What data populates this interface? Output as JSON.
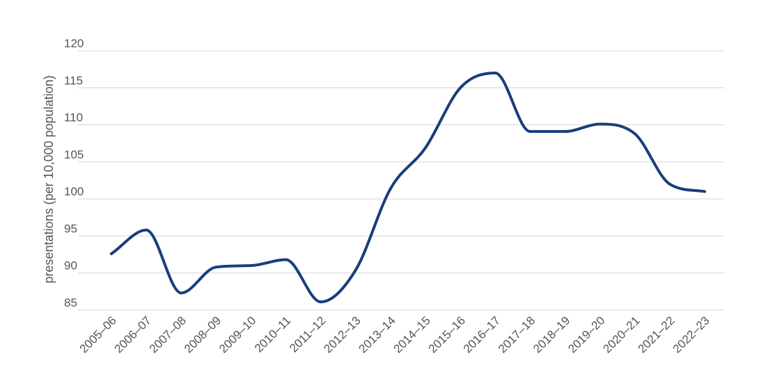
{
  "chart_data": {
    "type": "line",
    "title": "",
    "xlabel": "",
    "ylabel": "presentations (per 10,000 population)",
    "ylim": [
      85,
      120
    ],
    "yticks": [
      85,
      90,
      95,
      100,
      105,
      110,
      115,
      120
    ],
    "grid": true,
    "categories": [
      "2005–06",
      "2006–07",
      "2007–08",
      "2008–09",
      "2009–10",
      "2010–11",
      "2011–12",
      "2012–13",
      "2013–14",
      "2014–15",
      "2015–16",
      "2016–17",
      "2017–18",
      "2018–19",
      "2019–20",
      "2020–21",
      "2021–22",
      "2022–23"
    ],
    "series": [
      {
        "values": [
          92.6,
          95.8,
          87.3,
          90.8,
          91.0,
          91.8,
          86.1,
          90.4,
          101.4,
          106.9,
          115.0,
          117.0,
          109.1,
          109.1,
          110.1,
          108.8,
          102.0,
          101.0
        ],
        "color": "#1a3d7c"
      }
    ]
  }
}
